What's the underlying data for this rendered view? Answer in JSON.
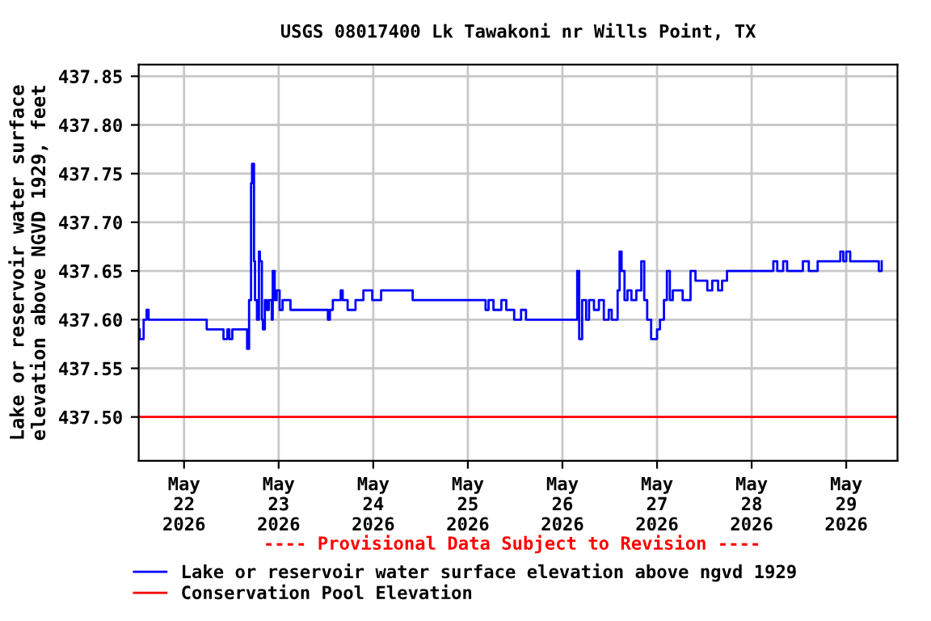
{
  "chart_data": {
    "type": "step",
    "title": "USGS 08017400 Lk Tawakoni nr Wills Point, TX",
    "ylabel": "Lake or reservoir water surface\nelevation above NGVD 1929, feet",
    "annotations": [
      "---- Provisional Data Subject to Revision ----"
    ],
    "series": [
      {
        "name": "Lake or reservoir water surface elevation above ngvd 1929",
        "color": "#0000ff",
        "x": [
          "2026-05-21T12:30",
          "2026-05-21T12:45",
          "2026-05-21T13:45",
          "2026-05-21T14:30",
          "2026-05-21T15:00",
          "2026-05-22T05:45",
          "2026-05-22T07:00",
          "2026-05-22T10:00",
          "2026-05-22T11:00",
          "2026-05-22T11:30",
          "2026-05-22T12:15",
          "2026-05-22T16:00",
          "2026-05-22T16:30",
          "2026-05-22T17:00",
          "2026-05-22T17:15",
          "2026-05-22T17:45",
          "2026-05-22T18:00",
          "2026-05-22T18:30",
          "2026-05-22T19:00",
          "2026-05-22T19:15",
          "2026-05-22T19:45",
          "2026-05-22T20:00",
          "2026-05-22T20:30",
          "2026-05-22T21:00",
          "2026-05-22T21:30",
          "2026-05-22T22:15",
          "2026-05-22T22:30",
          "2026-05-22T23:00",
          "2026-05-22T23:30",
          "2026-05-23T00:15",
          "2026-05-23T01:00",
          "2026-05-23T02:15",
          "2026-05-23T03:00",
          "2026-05-23T12:30",
          "2026-05-23T13:00",
          "2026-05-23T13:45",
          "2026-05-23T15:45",
          "2026-05-23T16:15",
          "2026-05-23T17:30",
          "2026-05-23T19:30",
          "2026-05-23T21:30",
          "2026-05-23T23:45",
          "2026-05-24T02:00",
          "2026-05-24T08:00",
          "2026-05-24T10:00",
          "2026-05-25T04:30",
          "2026-05-25T05:15",
          "2026-05-25T06:30",
          "2026-05-25T08:30",
          "2026-05-25T09:45",
          "2026-05-25T11:45",
          "2026-05-25T13:30",
          "2026-05-25T14:45",
          "2026-05-26T03:45",
          "2026-05-26T04:15",
          "2026-05-26T05:00",
          "2026-05-26T06:00",
          "2026-05-26T06:45",
          "2026-05-26T08:00",
          "2026-05-26T09:15",
          "2026-05-26T10:30",
          "2026-05-26T11:45",
          "2026-05-26T12:30",
          "2026-05-26T13:45",
          "2026-05-26T14:00",
          "2026-05-26T14:30",
          "2026-05-26T15:00",
          "2026-05-26T15:45",
          "2026-05-26T16:30",
          "2026-05-26T17:30",
          "2026-05-26T18:45",
          "2026-05-26T20:00",
          "2026-05-26T20:45",
          "2026-05-26T21:30",
          "2026-05-26T22:30",
          "2026-05-26T23:30",
          "2026-05-27T00:00",
          "2026-05-27T00:45",
          "2026-05-27T01:45",
          "2026-05-27T02:30",
          "2026-05-27T03:15",
          "2026-05-27T04:00",
          "2026-05-27T05:45",
          "2026-05-27T06:30",
          "2026-05-27T08:30",
          "2026-05-27T09:45",
          "2026-05-27T12:45",
          "2026-05-27T14:00",
          "2026-05-27T15:30",
          "2026-05-27T16:30",
          "2026-05-27T17:45",
          "2026-05-28T05:30",
          "2026-05-28T06:30",
          "2026-05-28T08:00",
          "2026-05-28T09:00",
          "2026-05-28T13:00",
          "2026-05-28T14:30",
          "2026-05-28T16:45",
          "2026-05-28T22:30",
          "2026-05-28T23:15",
          "2026-05-29T00:00",
          "2026-05-29T01:00",
          "2026-05-29T08:15",
          "2026-05-29T09:00"
        ],
        "values": [
          437.59,
          437.58,
          437.6,
          437.61,
          437.6,
          437.59,
          437.59,
          437.58,
          437.59,
          437.58,
          437.59,
          437.57,
          437.62,
          437.74,
          437.76,
          437.66,
          437.62,
          437.6,
          437.67,
          437.66,
          437.6,
          437.59,
          437.62,
          437.61,
          437.62,
          437.6,
          437.65,
          437.62,
          437.63,
          437.61,
          437.62,
          437.62,
          437.61,
          437.6,
          437.61,
          437.62,
          437.63,
          437.62,
          437.61,
          437.62,
          437.63,
          437.62,
          437.63,
          437.63,
          437.62,
          437.61,
          437.62,
          437.61,
          437.62,
          437.61,
          437.6,
          437.61,
          437.6,
          437.65,
          437.58,
          437.62,
          437.6,
          437.62,
          437.61,
          437.62,
          437.6,
          437.61,
          437.6,
          437.6,
          437.63,
          437.67,
          437.65,
          437.62,
          437.63,
          437.62,
          437.63,
          437.66,
          437.62,
          437.6,
          437.58,
          437.58,
          437.59,
          437.6,
          437.62,
          437.65,
          437.62,
          437.63,
          437.63,
          437.62,
          437.65,
          437.64,
          437.63,
          437.64,
          437.63,
          437.64,
          437.65,
          437.66,
          437.65,
          437.66,
          437.65,
          437.66,
          437.65,
          437.66,
          437.67,
          437.66,
          437.67,
          437.66,
          437.65,
          437.66
        ]
      }
    ],
    "ref_lines": [
      {
        "axis": "y",
        "value": 437.5,
        "label": "Conservation Pool Elevation",
        "color": "#ff0000"
      }
    ],
    "xlim": [
      "2026-05-21T12:30",
      "2026-05-29T13:00"
    ],
    "xticks": [
      {
        "value": "2026-05-22",
        "label": "May\n22\n2026"
      },
      {
        "value": "2026-05-23",
        "label": "May\n23\n2026"
      },
      {
        "value": "2026-05-24",
        "label": "May\n24\n2026"
      },
      {
        "value": "2026-05-25",
        "label": "May\n25\n2026"
      },
      {
        "value": "2026-05-26",
        "label": "May\n26\n2026"
      },
      {
        "value": "2026-05-27",
        "label": "May\n27\n2026"
      },
      {
        "value": "2026-05-28",
        "label": "May\n28\n2026"
      },
      {
        "value": "2026-05-29",
        "label": "May\n29\n2026"
      }
    ],
    "ylim": [
      437.455,
      437.862
    ],
    "yticks": [
      {
        "value": 437.5,
        "label": "437.50"
      },
      {
        "value": 437.55,
        "label": "437.55"
      },
      {
        "value": 437.6,
        "label": "437.60"
      },
      {
        "value": 437.65,
        "label": "437.65"
      },
      {
        "value": 437.7,
        "label": "437.70"
      },
      {
        "value": 437.75,
        "label": "437.75"
      },
      {
        "value": 437.8,
        "label": "437.80"
      },
      {
        "value": 437.85,
        "label": "437.85"
      }
    ],
    "grid": true,
    "legend": "bottom"
  }
}
